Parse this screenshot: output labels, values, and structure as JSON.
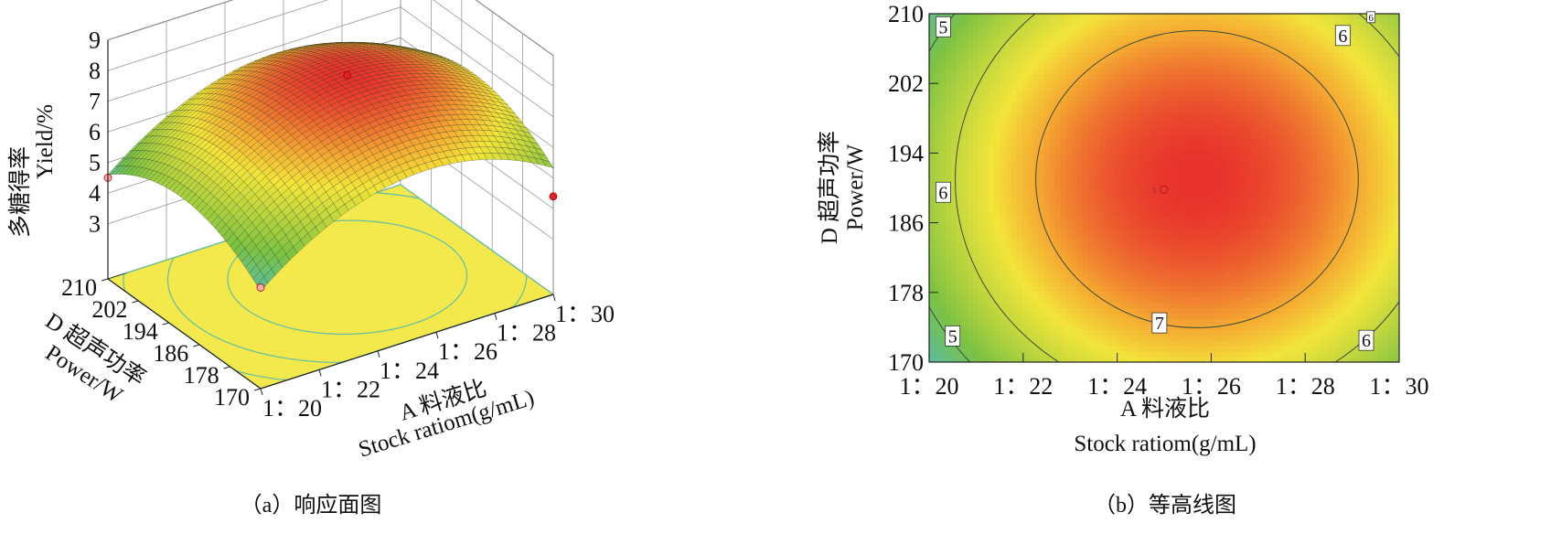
{
  "chart_data": [
    {
      "type": "surface3d",
      "caption": "（a）响应面图",
      "zlabel_cn": "多糖得率",
      "zlabel_en": "Yield/%",
      "xlabel_cn": "A 料液比",
      "xlabel_en": "Stock ratiom(g/mL)",
      "ylabel_cn": "D 超声功率",
      "ylabel_en": "Power/W",
      "x_ticks": [
        "1：20",
        "1：22",
        "1：24",
        "1：26",
        "1：28",
        "1：30"
      ],
      "x_values": [
        20,
        22,
        24,
        26,
        28,
        30
      ],
      "y_ticks": [
        "170",
        "178",
        "186",
        "194",
        "202",
        "210"
      ],
      "y_values": [
        170,
        178,
        186,
        194,
        202,
        210
      ],
      "z_ticks": [
        "3",
        "4",
        "5",
        "6",
        "7",
        "8",
        "9"
      ],
      "z_values": [
        3,
        4,
        5,
        6,
        7,
        8,
        9
      ],
      "xlim": [
        20,
        30
      ],
      "ylim": [
        170,
        210
      ],
      "zlim": [
        1.2,
        9
      ],
      "model": {
        "peak": 7.8,
        "center_x": 25.7,
        "center_y": 191,
        "ax": 1.7,
        "ay": 1.1,
        "sx": 5,
        "sy": 20
      },
      "points": [
        {
          "x": 25.7,
          "y": 191,
          "z": 7.8
        },
        {
          "x": 20,
          "y": 210,
          "z": 4.5
        },
        {
          "x": 30,
          "y": 170,
          "z": 4.4
        },
        {
          "x": 20,
          "y": 170,
          "z": 4.5
        }
      ]
    },
    {
      "type": "contour",
      "caption": "（b）等高线图",
      "xlabel_cn": "A 料液比",
      "xlabel_en": "Stock ratiom(g/mL)",
      "ylabel_cn": "D 超声功率",
      "ylabel_en": "Power/W",
      "x_ticks": [
        "1：20",
        "1：22",
        "1：24",
        "1：26",
        "1：28",
        "1：30"
      ],
      "x_values": [
        20,
        22,
        24,
        26,
        28,
        30
      ],
      "y_ticks": [
        "170",
        "178",
        "186",
        "194",
        "202",
        "210"
      ],
      "y_values": [
        170,
        178,
        186,
        194,
        202,
        210
      ],
      "xlim": [
        20,
        30
      ],
      "ylim": [
        170,
        210
      ],
      "levels": [
        5,
        6,
        7
      ],
      "contour_labels": [
        {
          "text": "5",
          "x": 20.3,
          "y": 208.5
        },
        {
          "text": "6",
          "x": 28.8,
          "y": 207.5
        },
        {
          "text": "6",
          "x": 29.4,
          "y": 209.6,
          "small": true
        },
        {
          "text": "6",
          "x": 20.3,
          "y": 189.5
        },
        {
          "text": "7",
          "x": 24.9,
          "y": 174.5
        },
        {
          "text": "5",
          "x": 20.5,
          "y": 173
        },
        {
          "text": "6",
          "x": 29.3,
          "y": 172.5
        }
      ],
      "center_point": {
        "label": "5",
        "x": 24.9,
        "y": 189.8
      }
    }
  ],
  "colors": {
    "low": "#3fb9e6",
    "mid": "#7cc242",
    "yellow": "#f3e53a",
    "high": "#e8312c",
    "floor": "#f3e94d"
  }
}
